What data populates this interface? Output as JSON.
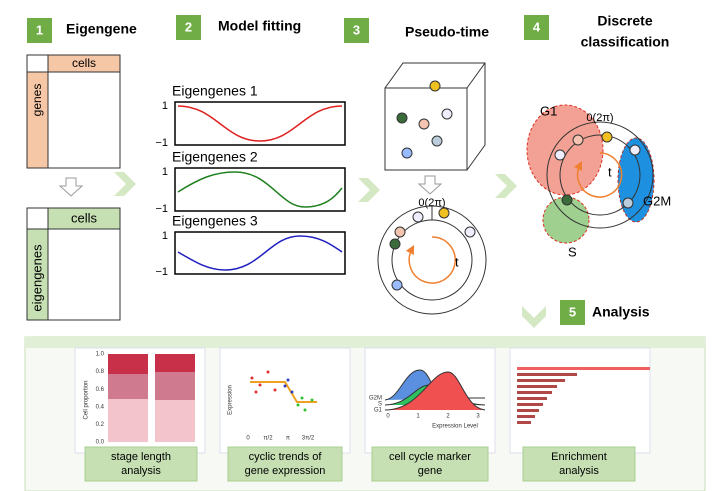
{
  "steps": [
    {
      "number": "1",
      "label": [
        "Eigengene"
      ]
    },
    {
      "number": "2",
      "label": [
        "Model fitting"
      ]
    },
    {
      "number": "3",
      "label": [
        "Pseudo-time"
      ]
    },
    {
      "number": "4",
      "label": [
        "Discrete",
        "classification"
      ]
    }
  ],
  "matrix_top": {
    "columns": "cells",
    "rows": "genes"
  },
  "matrix_bottom": {
    "columns": "cells",
    "rows": "eigengenes"
  },
  "model_fitting": {
    "panels": [
      {
        "title": "Eigengenes 1",
        "ticks": [
          "1",
          "−1"
        ]
      },
      {
        "title": "Eigengenes 2",
        "ticks": [
          "1",
          "−1"
        ]
      },
      {
        "title": "Eigengenes 3",
        "ticks": [
          "1",
          "−1"
        ]
      }
    ]
  },
  "pseudo_time": {
    "origin": "0(2π)",
    "direction": "t"
  },
  "classification": {
    "origin": "0(2π)",
    "direction": "t",
    "phases": [
      "G1",
      "G2M",
      "S"
    ]
  },
  "analysis": {
    "number": "5",
    "label": "Analysis",
    "panels": [
      {
        "caption": [
          "stage length",
          "analysis"
        ],
        "axis_title": "Cell proportion",
        "ticks": [
          "1.0",
          "0.8",
          "0.6",
          "0.4",
          "0.2",
          "0.0"
        ]
      },
      {
        "caption": [
          "cyclic trends of",
          "gene expression"
        ],
        "axis_title": "Expression",
        "ticks": [
          "0",
          "π/2",
          "π",
          "3π/2"
        ]
      },
      {
        "caption": [
          "cell cycle marker",
          "gene"
        ],
        "axis_title": "Expression Level",
        "ticks": [
          "0",
          "1",
          "2",
          "3"
        ],
        "rows": [
          "G2M",
          "S",
          "G1"
        ]
      },
      {
        "caption": [
          "Enrichment",
          "analysis"
        ]
      }
    ]
  }
}
